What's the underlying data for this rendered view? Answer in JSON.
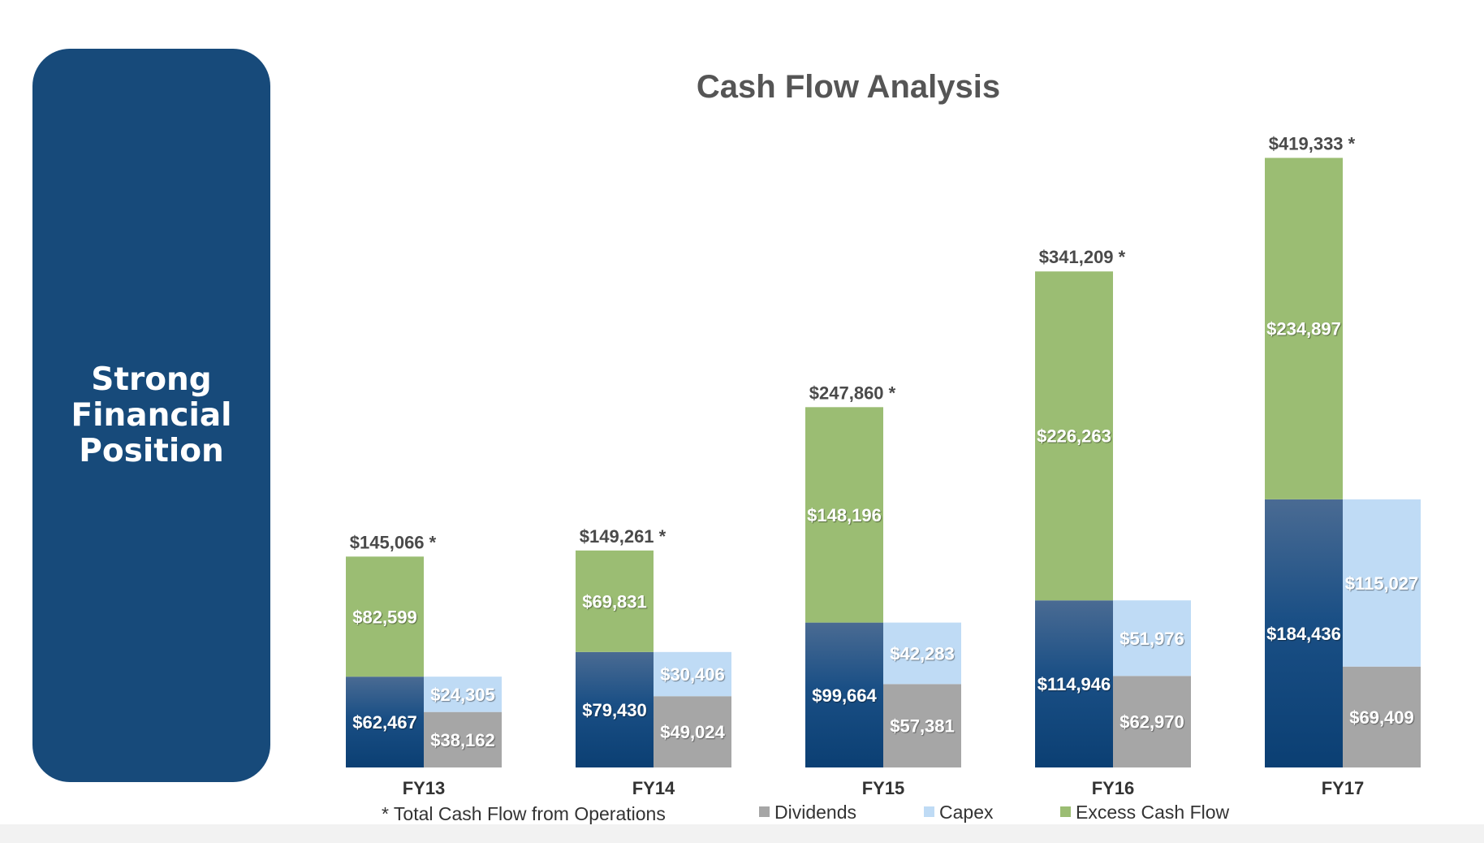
{
  "side_panel": {
    "text": "Strong\nFinancial\nPosition"
  },
  "chart_data": {
    "type": "bar",
    "title": "Cash Flow Analysis",
    "categories": [
      "FY13",
      "FY14",
      "FY15",
      "FY16",
      "FY17"
    ],
    "totals": [
      145066,
      149261,
      247860,
      341209,
      419333
    ],
    "total_labels": [
      "$145,066 *",
      "$149,261 *",
      "$247,860 *",
      "$341,209 *",
      "$419,333 *"
    ],
    "footnote": "* Total Cash Flow from Operations",
    "stacks": [
      {
        "segments": [
          {
            "name": "",
            "values": [
              62467,
              79430,
              99664,
              114946,
              184436
            ],
            "labels": [
              "$62,467",
              "$79,430",
              "$99,664",
              "$114,946",
              "$184,436"
            ],
            "color": "#0f4478"
          },
          {
            "name": "Excess Cash Flow",
            "values": [
              82599,
              69831,
              148196,
              226263,
              234897
            ],
            "labels": [
              "$82,599",
              "$69,831",
              "$148,196",
              "$226,263",
              "$234,897"
            ],
            "color": "#9bbd73"
          }
        ]
      },
      {
        "segments": [
          {
            "name": "Dividends",
            "values": [
              38162,
              49024,
              57381,
              62970,
              69409
            ],
            "labels": [
              "$38,162",
              "$49,024",
              "$57,381",
              "$62,970",
              "$69,409"
            ],
            "color": "#a6a6a6"
          },
          {
            "name": "Capex",
            "values": [
              24305,
              30406,
              42283,
              51976,
              115027
            ],
            "labels": [
              "$24,305",
              "$30,406",
              "$42,283",
              "$51,976",
              "$115,027"
            ],
            "color": "#bfdbf5"
          }
        ]
      }
    ],
    "legend": [
      {
        "name": "Dividends",
        "color": "#a6a6a6"
      },
      {
        "name": "Capex",
        "color": "#bfdbf5"
      },
      {
        "name": "Excess Cash Flow",
        "color": "#9bbd73"
      }
    ],
    "legend_position": "bottom",
    "grid": false
  }
}
